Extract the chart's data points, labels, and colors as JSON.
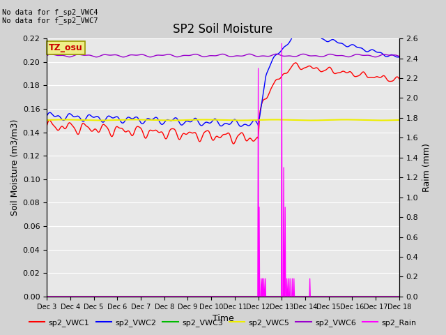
{
  "title": "SP2 Soil Moisture",
  "ylabel_left": "Soil Moisture (m3/m3)",
  "ylabel_right": "Raim (mm)",
  "xlabel": "Time",
  "no_data_text": [
    "No data for f_sp2_VWC4",
    "No data for f_sp2_VWC7"
  ],
  "tz_label": "TZ_osu",
  "x_tick_labels": [
    "Dec 3",
    "Dec 4",
    "Dec 5",
    "Dec 6",
    "Dec 7",
    "Dec 8",
    "Dec 9",
    "Dec 10",
    "Dec 11",
    "Dec 12",
    "Dec 13",
    "Dec 14",
    "Dec 15",
    "Dec 16",
    "Dec 17",
    "Dec 18"
  ],
  "ylim_left": [
    0.0,
    0.22
  ],
  "ylim_right": [
    0.0,
    2.6
  ],
  "yticks_left": [
    0.0,
    0.02,
    0.04,
    0.06,
    0.08,
    0.1,
    0.12,
    0.14,
    0.16,
    0.18,
    0.2,
    0.22
  ],
  "yticks_right": [
    0.0,
    0.2,
    0.4,
    0.6,
    0.8,
    1.0,
    1.2,
    1.4,
    1.6,
    1.8,
    2.0,
    2.2,
    2.4,
    2.6
  ],
  "colors": {
    "VWC1": "#ff0000",
    "VWC2": "#0000ff",
    "VWC3": "#00bb00",
    "VWC5": "#eeee00",
    "VWC6": "#9900cc",
    "Rain": "#ff00ff"
  },
  "bg_color": "#d3d3d3",
  "plot_bg": "#e8e8e8",
  "legend_entries": [
    "sp2_VWC1",
    "sp2_VWC2",
    "sp2_VWC3",
    "sp2_VWC5",
    "sp2_VWC6",
    "sp2_Rain"
  ]
}
